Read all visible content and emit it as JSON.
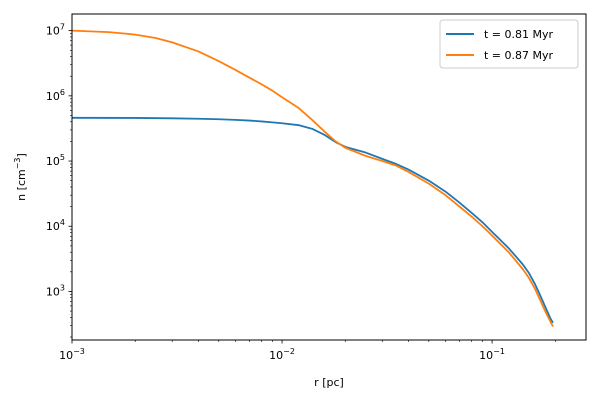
{
  "chart_data": {
    "type": "line",
    "title": "",
    "xlabel": "r [pc]",
    "ylabel_base": "n [cm",
    "ylabel_exp": "−3",
    "ylabel_close": "]",
    "xscale": "log",
    "yscale": "log",
    "xlim": [
      0.001,
      0.28
    ],
    "ylim": [
      180,
      18000000
    ],
    "grid": false,
    "legend_position": "top-right",
    "x_ticks": [
      {
        "value": 0.001,
        "base": "10",
        "exp": "−3"
      },
      {
        "value": 0.01,
        "base": "10",
        "exp": "−2"
      },
      {
        "value": 0.1,
        "base": "10",
        "exp": "−1"
      }
    ],
    "y_ticks": [
      {
        "value": 1000,
        "base": "10",
        "exp": "3"
      },
      {
        "value": 10000,
        "base": "10",
        "exp": "4"
      },
      {
        "value": 100000,
        "base": "10",
        "exp": "5"
      },
      {
        "value": 1000000,
        "base": "10",
        "exp": "6"
      },
      {
        "value": 10000000,
        "base": "10",
        "exp": "7"
      }
    ],
    "series": [
      {
        "name": "t = 0.81 Myr",
        "color": "#1f77b4",
        "points": [
          [
            0.001,
            460000
          ],
          [
            0.002,
            458000
          ],
          [
            0.003,
            452000
          ],
          [
            0.004,
            445000
          ],
          [
            0.005,
            438000
          ],
          [
            0.006,
            428000
          ],
          [
            0.007,
            418000
          ],
          [
            0.008,
            405000
          ],
          [
            0.009,
            392000
          ],
          [
            0.01,
            380000
          ],
          [
            0.012,
            355000
          ],
          [
            0.014,
            310000
          ],
          [
            0.016,
            250000
          ],
          [
            0.018,
            195000
          ],
          [
            0.02,
            165000
          ],
          [
            0.025,
            135000
          ],
          [
            0.03,
            108000
          ],
          [
            0.035,
            90000
          ],
          [
            0.04,
            74000
          ],
          [
            0.05,
            50000
          ],
          [
            0.06,
            34000
          ],
          [
            0.07,
            23000
          ],
          [
            0.08,
            16000
          ],
          [
            0.09,
            11500
          ],
          [
            0.1,
            8200
          ],
          [
            0.12,
            4600
          ],
          [
            0.14,
            2600
          ],
          [
            0.15,
            1900
          ],
          [
            0.16,
            1300
          ],
          [
            0.17,
            850
          ],
          [
            0.18,
            560
          ],
          [
            0.19,
            380
          ],
          [
            0.195,
            330
          ]
        ]
      },
      {
        "name": "t = 0.87 Myr",
        "color": "#ff7f0e",
        "points": [
          [
            0.001,
            10000000
          ],
          [
            0.0015,
            9500000
          ],
          [
            0.002,
            8700000
          ],
          [
            0.0025,
            7700000
          ],
          [
            0.003,
            6600000
          ],
          [
            0.004,
            4800000
          ],
          [
            0.005,
            3400000
          ],
          [
            0.006,
            2500000
          ],
          [
            0.007,
            1900000
          ],
          [
            0.008,
            1500000
          ],
          [
            0.009,
            1200000
          ],
          [
            0.01,
            950000
          ],
          [
            0.012,
            650000
          ],
          [
            0.014,
            420000
          ],
          [
            0.016,
            280000
          ],
          [
            0.018,
            200000
          ],
          [
            0.02,
            160000
          ],
          [
            0.025,
            120000
          ],
          [
            0.03,
            100000
          ],
          [
            0.035,
            85000
          ],
          [
            0.04,
            68000
          ],
          [
            0.05,
            45000
          ],
          [
            0.06,
            30000
          ],
          [
            0.07,
            20000
          ],
          [
            0.08,
            14000
          ],
          [
            0.09,
            10000
          ],
          [
            0.1,
            7200
          ],
          [
            0.12,
            4000
          ],
          [
            0.14,
            2200
          ],
          [
            0.15,
            1600
          ],
          [
            0.16,
            1100
          ],
          [
            0.17,
            720
          ],
          [
            0.18,
            480
          ],
          [
            0.19,
            340
          ],
          [
            0.195,
            290
          ]
        ]
      }
    ]
  }
}
